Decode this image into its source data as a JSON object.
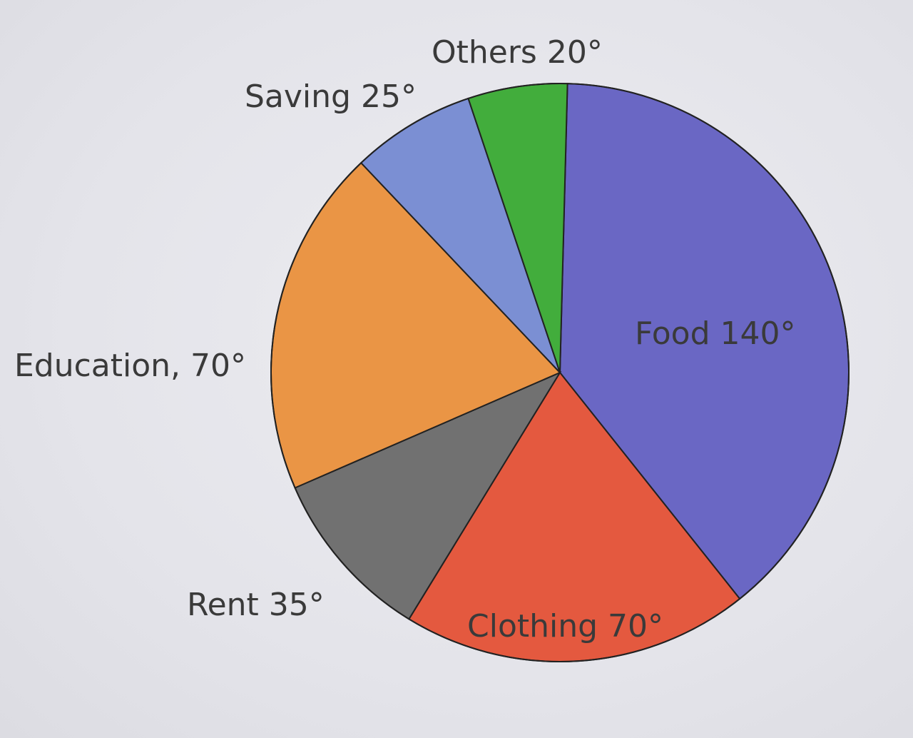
{
  "chart_data": {
    "type": "pie",
    "unit": "°",
    "slices": [
      {
        "name": "Food",
        "value": 140,
        "label": "Food 140°",
        "color": "#6a67c4"
      },
      {
        "name": "Clothing",
        "value": 70,
        "label": "Clothing 70°",
        "color": "#e4593f"
      },
      {
        "name": "Rent",
        "value": 35,
        "label": "Rent 35°",
        "color": "#717171"
      },
      {
        "name": "Education",
        "value": 70,
        "label": "Education, 70°",
        "color": "#ea9545"
      },
      {
        "name": "Saving",
        "value": 25,
        "label": "Saving 25°",
        "color": "#7b8fd3"
      },
      {
        "name": "Others",
        "value": 20,
        "label": "Others 20°",
        "color": "#42ad3c"
      }
    ]
  }
}
